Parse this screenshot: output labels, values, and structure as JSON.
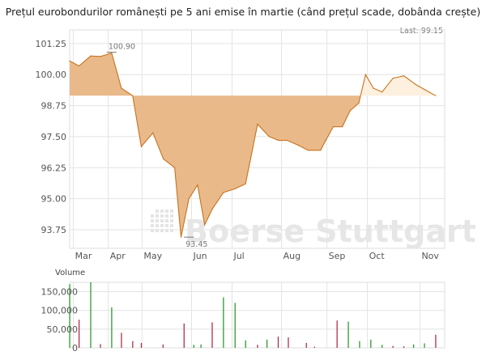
{
  "title": "Prețul eurobondurilor românești pe 5 ani emise în martie (când prețul scade, dobânda crește)",
  "last_label": "Last: 99.15",
  "watermark": "Boerse Stuttgart",
  "colors": {
    "line": "#c8731c",
    "fill_below": "#e9b98a",
    "fill_above": "#fdf0df",
    "grid": "#e3e3e3",
    "vol_up": "#2e9a2e",
    "vol_down": "#b0304a"
  },
  "chart_data": [
    {
      "type": "area",
      "title": "Prețul eurobondurilor românești pe 5 ani emise în martie (când prețul scade, dobânda crește)",
      "baseline": 99.15,
      "ylim": [
        93.0,
        101.8
      ],
      "xlim": [
        0,
        100
      ],
      "y_ticks": [
        101.25,
        100.0,
        98.75,
        97.5,
        96.25,
        95.0,
        93.75
      ],
      "y_tick_labels": [
        "101.25",
        "100.00",
        "98.75",
        "97.50",
        "96.25",
        "95.00",
        "93.75"
      ],
      "x_ticks": [
        {
          "label": "Mar",
          "x": 1
        },
        {
          "label": "Apr",
          "x": 10.3
        },
        {
          "label": "May",
          "x": 19.3
        },
        {
          "label": "Jun",
          "x": 32.5
        },
        {
          "label": "Jul",
          "x": 43.3
        },
        {
          "label": "Aug",
          "x": 56.5
        },
        {
          "label": "Sep",
          "x": 68.6
        },
        {
          "label": "Oct",
          "x": 79.4
        },
        {
          "label": "Nov",
          "x": 93.4
        }
      ],
      "x": [
        0,
        2.5,
        5.6,
        8.2,
        11.2,
        13.8,
        16.8,
        19.1,
        22.2,
        25.0,
        28.0,
        29.7,
        31.8,
        34.1,
        36.0,
        38.1,
        41.0,
        44.1,
        46.9,
        50.1,
        53.2,
        55.7,
        58.0,
        61.0,
        63.6,
        66.9,
        68.1,
        70.3,
        72.7,
        74.8,
        77.1,
        78.9,
        81.0,
        83.3,
        86.2,
        89.1,
        92.3,
        94.6,
        97.6
      ],
      "y": [
        100.55,
        100.35,
        100.75,
        100.73,
        100.87,
        99.45,
        99.15,
        97.1,
        97.65,
        96.6,
        96.25,
        93.45,
        95.0,
        95.55,
        93.95,
        94.6,
        95.25,
        95.4,
        95.6,
        98.0,
        97.5,
        97.35,
        97.35,
        97.15,
        96.95,
        96.95,
        97.3,
        97.9,
        97.9,
        98.55,
        98.85,
        100.0,
        99.45,
        99.3,
        99.85,
        99.95,
        99.6,
        99.4,
        99.15
      ],
      "annotations": [
        {
          "text": "100.90",
          "x": 11.2,
          "y": 100.9
        },
        {
          "text": "93.45",
          "x": 31.8,
          "y": 93.45
        }
      ]
    },
    {
      "type": "bar",
      "title": "Volume",
      "ylim": [
        0,
        175000
      ],
      "y_ticks": [
        0,
        50000,
        100000,
        150000
      ],
      "y_tick_labels": [
        "0",
        "50,000",
        "100,000",
        "150,000"
      ],
      "bars": [
        {
          "x": 0,
          "v": 170000,
          "dir": "up"
        },
        {
          "x": 2.5,
          "v": 75000,
          "dir": "down"
        },
        {
          "x": 5.6,
          "v": 175000,
          "dir": "up"
        },
        {
          "x": 8.2,
          "v": 10000,
          "dir": "down"
        },
        {
          "x": 11.2,
          "v": 108000,
          "dir": "up"
        },
        {
          "x": 13.8,
          "v": 40000,
          "dir": "down"
        },
        {
          "x": 16.8,
          "v": 18000,
          "dir": "down"
        },
        {
          "x": 19.1,
          "v": 13000,
          "dir": "down"
        },
        {
          "x": 24.9,
          "v": 9000,
          "dir": "down"
        },
        {
          "x": 30.5,
          "v": 65000,
          "dir": "down"
        },
        {
          "x": 33.1,
          "v": 8000,
          "dir": "up"
        },
        {
          "x": 35.0,
          "v": 9000,
          "dir": "up"
        },
        {
          "x": 38.0,
          "v": 68000,
          "dir": "down"
        },
        {
          "x": 41.0,
          "v": 135000,
          "dir": "up"
        },
        {
          "x": 44.1,
          "v": 120000,
          "dir": "up"
        },
        {
          "x": 46.9,
          "v": 20000,
          "dir": "up"
        },
        {
          "x": 50.1,
          "v": 8000,
          "dir": "down"
        },
        {
          "x": 52.6,
          "v": 22000,
          "dir": "up"
        },
        {
          "x": 55.6,
          "v": 30000,
          "dir": "down"
        },
        {
          "x": 58.3,
          "v": 28000,
          "dir": "down"
        },
        {
          "x": 63.1,
          "v": 13000,
          "dir": "down"
        },
        {
          "x": 65.3,
          "v": 3000,
          "dir": "down"
        },
        {
          "x": 71.3,
          "v": 73000,
          "dir": "down"
        },
        {
          "x": 74.3,
          "v": 70000,
          "dir": "up"
        },
        {
          "x": 77.3,
          "v": 18000,
          "dir": "up"
        },
        {
          "x": 80.3,
          "v": 22000,
          "dir": "up"
        },
        {
          "x": 83.3,
          "v": 8000,
          "dir": "up"
        },
        {
          "x": 86.2,
          "v": 5000,
          "dir": "down"
        },
        {
          "x": 89.1,
          "v": 4000,
          "dir": "down"
        },
        {
          "x": 91.7,
          "v": 9000,
          "dir": "up"
        },
        {
          "x": 94.6,
          "v": 12000,
          "dir": "up"
        },
        {
          "x": 97.6,
          "v": 35000,
          "dir": "down"
        }
      ]
    }
  ]
}
